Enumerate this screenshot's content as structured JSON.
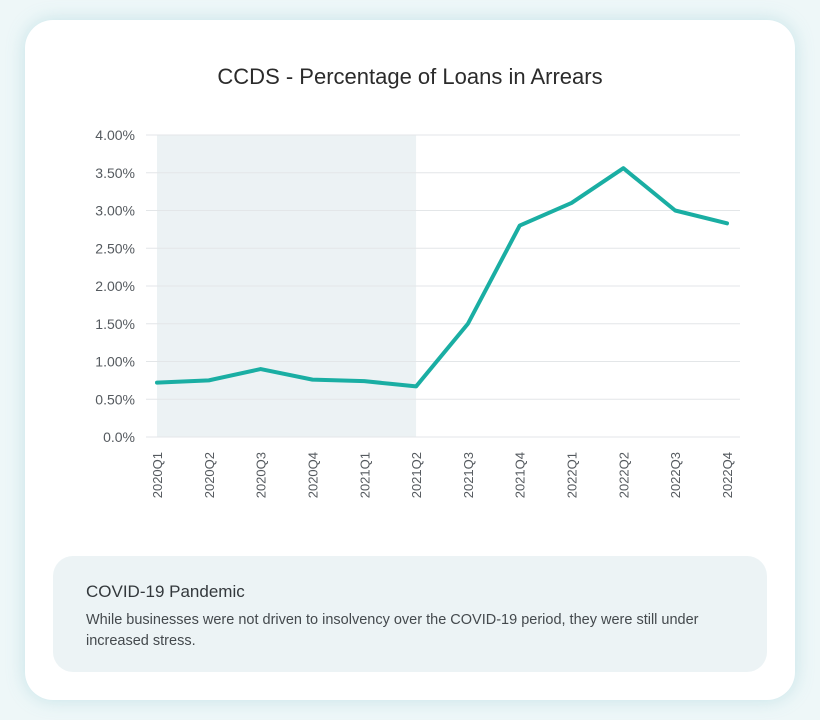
{
  "chart_data": {
    "type": "line",
    "title": "CCDS - Percentage of Loans in Arrears",
    "xlabel": "",
    "ylabel": "",
    "categories": [
      "2020Q1",
      "2020Q2",
      "2020Q3",
      "2020Q4",
      "2021Q1",
      "2021Q2",
      "2021Q3",
      "2021Q4",
      "2022Q1",
      "2022Q2",
      "2022Q3",
      "2022Q4"
    ],
    "series": [
      {
        "values": [
          0.72,
          0.75,
          0.9,
          0.76,
          0.74,
          0.67,
          1.5,
          2.8,
          3.1,
          3.56,
          3.0,
          2.83
        ]
      }
    ],
    "ylim": [
      0,
      4
    ],
    "yticks": [
      0,
      0.5,
      1,
      1.5,
      2,
      2.5,
      3,
      3.5,
      4
    ],
    "ytick_labels": [
      "0.0%",
      "0.50%",
      "1.00%",
      "1.50%",
      "2.00%",
      "2.50%",
      "3.00%",
      "3.50%",
      "4.00%"
    ],
    "grid": true,
    "legend": "none",
    "shaded_region": {
      "from": "2020Q1",
      "to": "2021Q2"
    },
    "colors": {
      "line": "#1aaea3",
      "shade": "#ecf2f4",
      "grid": "#e3e6e8"
    }
  },
  "note": {
    "title": "COVID-19 Pandemic",
    "text": "While businesses were not driven to insolvency over the COVID-19 period, they were still under increased stress."
  }
}
